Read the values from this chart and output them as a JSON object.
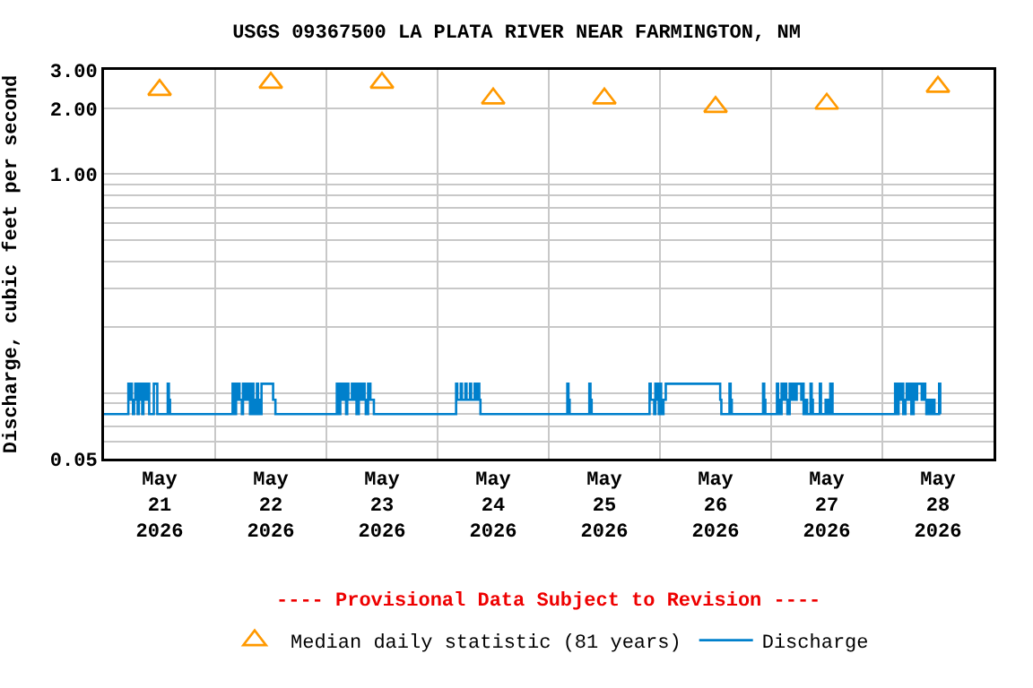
{
  "chart_data": {
    "type": "step",
    "title": "USGS 09367500 LA PLATA RIVER NEAR FARMINGTON, NM",
    "ylabel": "Discharge, cubic feet per second",
    "annotations": [
      "---- Provisional Data Subject to Revision ----"
    ],
    "log": true,
    "grid": true,
    "legend": "bottom",
    "xlim": [
      "2026-05-21T00:00",
      "2026-05-29T00:00"
    ],
    "xticks": [
      {
        "value": "2026-05-21T12:00",
        "label": "May\n21\n2026"
      },
      {
        "value": "2026-05-22T12:00",
        "label": "May\n22\n2026"
      },
      {
        "value": "2026-05-23T12:00",
        "label": "May\n23\n2026"
      },
      {
        "value": "2026-05-24T12:00",
        "label": "May\n24\n2026"
      },
      {
        "value": "2026-05-25T12:00",
        "label": "May\n25\n2026"
      },
      {
        "value": "2026-05-26T12:00",
        "label": "May\n26\n2026"
      },
      {
        "value": "2026-05-27T12:00",
        "label": "May\n27\n2026"
      },
      {
        "value": "2026-05-28T12:00",
        "label": "May\n28\n2026"
      },
      {
        "value": "2026-05-22T00:00",
        "label": null
      },
      {
        "value": "2026-05-23T00:00",
        "label": null
      },
      {
        "value": "2026-05-24T00:00",
        "label": null
      },
      {
        "value": "2026-05-25T00:00",
        "label": null
      },
      {
        "value": "2026-05-26T00:00",
        "label": null
      },
      {
        "value": "2026-05-27T00:00",
        "label": null
      },
      {
        "value": "2026-05-28T00:00",
        "label": null
      }
    ],
    "ylim": [
      0.05,
      3
    ],
    "yticks": [
      {
        "value": 0.05,
        "label": "0.05"
      },
      {
        "value": 1,
        "label": "1.00"
      },
      {
        "value": 2,
        "label": "2.00"
      },
      {
        "value": 3,
        "label": "3.00"
      },
      {
        "value": 0.06,
        "label": null
      },
      {
        "value": 0.07,
        "label": null
      },
      {
        "value": 0.08,
        "label": null
      },
      {
        "value": 0.09,
        "label": null
      },
      {
        "value": 0.1,
        "label": null
      },
      {
        "value": 0.2,
        "label": null
      },
      {
        "value": 0.3,
        "label": null
      },
      {
        "value": 0.4,
        "label": null
      },
      {
        "value": 0.5,
        "label": null
      },
      {
        "value": 0.6,
        "label": null
      },
      {
        "value": 0.7,
        "label": null
      },
      {
        "value": 0.8,
        "label": null
      },
      {
        "value": 0.9,
        "label": null
      }
    ],
    "series": [
      {
        "name": "Median daily statistic (81 years)",
        "type": "scatter",
        "marker": "triangle",
        "color": "#ff9900",
        "x": [
          "2026-05-21T12:00",
          "2026-05-22T12:00",
          "2026-05-23T12:00",
          "2026-05-24T12:00",
          "2026-05-25T12:00",
          "2026-05-26T12:00",
          "2026-05-27T12:00",
          "2026-05-28T12:00"
        ],
        "values": [
          2.43,
          2.62,
          2.62,
          2.22,
          2.22,
          2.03,
          2.1,
          2.51
        ]
      },
      {
        "name": "Discharge",
        "color": "#0080cc",
        "x": [
          "2026-05-21T00:00",
          "2026-05-21T05:15",
          "2026-05-21T05:30",
          "2026-05-21T05:45",
          "2026-05-21T06:00",
          "2026-05-21T06:15",
          "2026-05-21T06:30",
          "2026-05-21T06:45",
          "2026-05-21T07:00",
          "2026-05-21T07:15",
          "2026-05-21T07:30",
          "2026-05-21T07:45",
          "2026-05-21T08:00",
          "2026-05-21T08:15",
          "2026-05-21T08:30",
          "2026-05-21T09:00",
          "2026-05-21T09:15",
          "2026-05-21T09:45",
          "2026-05-21T10:45",
          "2026-05-21T11:30",
          "2026-05-21T13:45",
          "2026-05-21T14:00",
          "2026-05-21T14:15",
          "2026-05-22T03:45",
          "2026-05-22T04:00",
          "2026-05-22T04:15",
          "2026-05-22T04:30",
          "2026-05-22T04:45",
          "2026-05-22T05:00",
          "2026-05-22T05:15",
          "2026-05-22T05:45",
          "2026-05-22T06:00",
          "2026-05-22T06:30",
          "2026-05-22T07:00",
          "2026-05-22T07:30",
          "2026-05-22T08:00",
          "2026-05-22T08:15",
          "2026-05-22T08:30",
          "2026-05-22T09:00",
          "2026-05-22T09:15",
          "2026-05-22T09:30",
          "2026-05-22T10:00",
          "2026-05-22T12:30",
          "2026-05-22T13:00",
          "2026-05-23T02:15",
          "2026-05-23T02:30",
          "2026-05-23T02:45",
          "2026-05-23T03:00",
          "2026-05-23T03:15",
          "2026-05-23T03:45",
          "2026-05-23T04:00",
          "2026-05-23T04:15",
          "2026-05-23T04:30",
          "2026-05-23T04:45",
          "2026-05-23T05:30",
          "2026-05-23T05:45",
          "2026-05-23T06:15",
          "2026-05-23T06:30",
          "2026-05-23T07:00",
          "2026-05-23T07:15",
          "2026-05-23T07:45",
          "2026-05-23T08:15",
          "2026-05-23T08:30",
          "2026-05-23T09:00",
          "2026-05-23T09:30",
          "2026-05-23T10:15",
          "2026-05-24T04:00",
          "2026-05-24T04:15",
          "2026-05-24T05:00",
          "2026-05-24T05:15",
          "2026-05-24T06:00",
          "2026-05-24T06:15",
          "2026-05-24T07:00",
          "2026-05-24T07:15",
          "2026-05-24T08:00",
          "2026-05-24T08:15",
          "2026-05-24T08:45",
          "2026-05-24T09:00",
          "2026-05-24T09:15",
          "2026-05-25T04:00",
          "2026-05-25T04:15",
          "2026-05-25T04:30",
          "2026-05-25T08:45",
          "2026-05-25T09:00",
          "2026-05-25T09:15",
          "2026-05-25T21:45",
          "2026-05-25T22:00",
          "2026-05-25T22:45",
          "2026-05-25T23:00",
          "2026-05-25T23:15",
          "2026-05-25T23:30",
          "2026-05-25T23:45",
          "2026-05-26T00:00",
          "2026-05-26T00:15",
          "2026-05-26T00:30",
          "2026-05-26T00:45",
          "2026-05-26T01:15",
          "2026-05-26T13:00",
          "2026-05-26T13:15",
          "2026-05-26T15:00",
          "2026-05-26T15:15",
          "2026-05-26T15:30",
          "2026-05-26T22:15",
          "2026-05-26T22:30",
          "2026-05-26T22:45",
          "2026-05-27T01:15",
          "2026-05-27T01:30",
          "2026-05-27T01:45",
          "2026-05-27T02:15",
          "2026-05-27T02:30",
          "2026-05-27T03:00",
          "2026-05-27T03:15",
          "2026-05-27T03:30",
          "2026-05-27T04:00",
          "2026-05-27T04:15",
          "2026-05-27T04:45",
          "2026-05-27T05:00",
          "2026-05-27T05:30",
          "2026-05-27T06:30",
          "2026-05-27T06:45",
          "2026-05-27T07:00",
          "2026-05-27T07:30",
          "2026-05-27T07:45",
          "2026-05-27T08:30",
          "2026-05-27T08:45",
          "2026-05-27T09:00",
          "2026-05-27T10:30",
          "2026-05-27T10:45",
          "2026-05-27T11:45",
          "2026-05-27T12:15",
          "2026-05-27T12:45",
          "2026-05-27T13:15",
          "2026-05-28T02:45",
          "2026-05-28T03:00",
          "2026-05-28T03:15",
          "2026-05-28T03:30",
          "2026-05-28T03:45",
          "2026-05-28T04:15",
          "2026-05-28T04:30",
          "2026-05-28T05:00",
          "2026-05-28T05:15",
          "2026-05-28T05:30",
          "2026-05-28T06:00",
          "2026-05-28T06:15",
          "2026-05-28T06:45",
          "2026-05-28T07:00",
          "2026-05-28T07:30",
          "2026-05-28T08:30",
          "2026-05-28T08:45",
          "2026-05-28T09:15",
          "2026-05-28T09:30",
          "2026-05-28T10:00",
          "2026-05-28T10:30",
          "2026-05-28T11:00",
          "2026-05-28T11:15",
          "2026-05-28T12:15",
          "2026-05-28T12:30"
        ],
        "values": [
          0.08,
          0.11,
          0.093,
          0.11,
          0.093,
          0.08,
          0.093,
          0.11,
          0.093,
          0.08,
          0.11,
          0.093,
          0.11,
          0.08,
          0.11,
          0.093,
          0.11,
          0.08,
          0.11,
          0.08,
          0.11,
          0.093,
          0.08,
          0.11,
          0.093,
          0.08,
          0.11,
          0.093,
          0.11,
          0.093,
          0.08,
          0.11,
          0.093,
          0.11,
          0.08,
          0.11,
          0.093,
          0.08,
          0.11,
          0.093,
          0.08,
          0.11,
          0.093,
          0.08,
          0.11,
          0.093,
          0.08,
          0.11,
          0.093,
          0.11,
          0.093,
          0.08,
          0.11,
          0.093,
          0.11,
          0.093,
          0.11,
          0.08,
          0.11,
          0.093,
          0.11,
          0.093,
          0.08,
          0.11,
          0.093,
          0.08,
          0.11,
          0.093,
          0.11,
          0.093,
          0.11,
          0.093,
          0.11,
          0.093,
          0.11,
          0.093,
          0.11,
          0.093,
          0.08,
          0.11,
          0.093,
          0.08,
          0.11,
          0.093,
          0.08,
          0.11,
          0.093,
          0.08,
          0.11,
          0.093,
          0.11,
          0.08,
          0.11,
          0.093,
          0.08,
          0.093,
          0.11,
          0.093,
          0.08,
          0.11,
          0.093,
          0.08,
          0.11,
          0.093,
          0.08,
          0.11,
          0.093,
          0.08,
          0.11,
          0.093,
          0.11,
          0.093,
          0.08,
          0.11,
          0.093,
          0.11,
          0.093,
          0.11,
          0.093,
          0.11,
          0.08,
          0.093,
          0.08,
          0.11,
          0.093,
          0.08,
          0.11,
          0.08,
          0.093,
          0.08,
          0.11,
          0.08,
          0.11,
          0.093,
          0.08,
          0.11,
          0.093,
          0.11,
          0.08,
          0.093,
          0.11,
          0.093,
          0.11,
          0.08,
          0.11,
          0.093,
          0.11,
          0.093,
          0.11,
          0.093,
          0.08,
          0.093,
          0.08,
          0.093,
          0.08,
          0.11,
          0.08
        ]
      }
    ]
  }
}
